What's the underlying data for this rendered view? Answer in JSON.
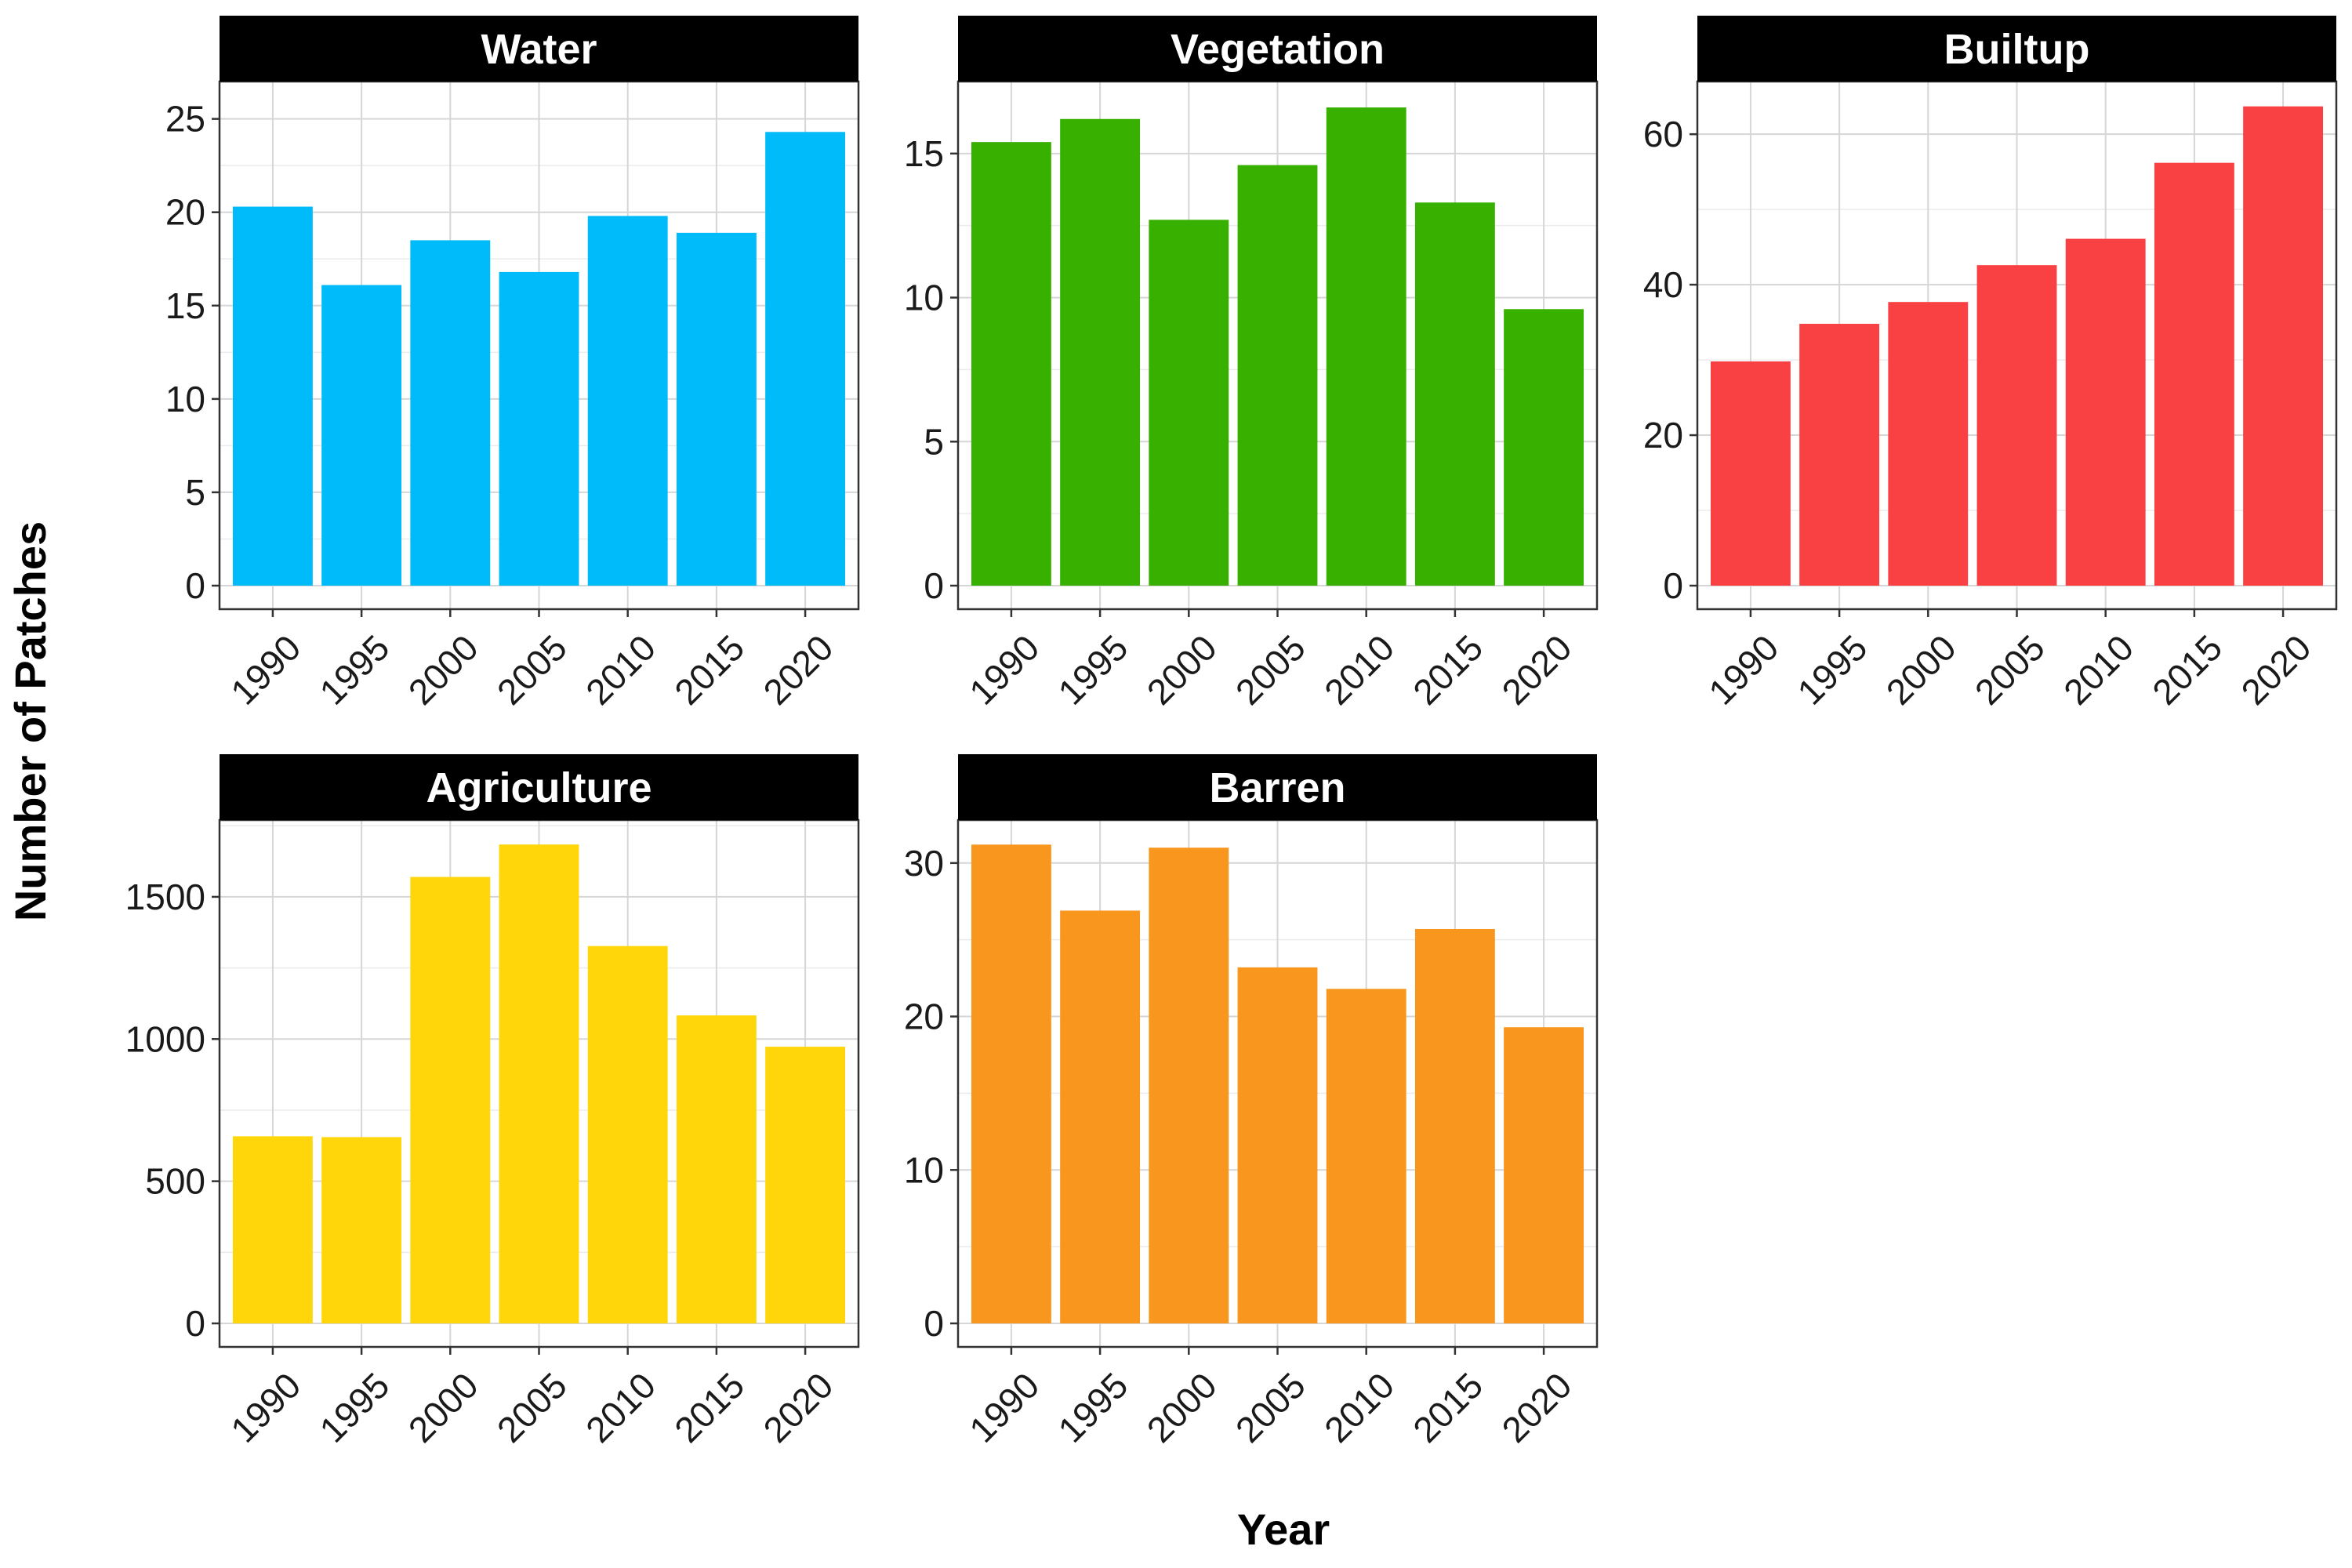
{
  "x_axis_title": "Year",
  "y_axis_title": "Number of Patches",
  "chart_data": [
    {
      "type": "bar",
      "title": "Water",
      "color": "#00BBF9",
      "categories": [
        "1990",
        "1995",
        "2000",
        "2005",
        "2010",
        "2015",
        "2020"
      ],
      "values": [
        20.3,
        16.1,
        18.5,
        16.8,
        19.8,
        18.9,
        24.3
      ],
      "ylim": [
        0,
        27
      ],
      "yticks": [
        0,
        5,
        10,
        15,
        20,
        25
      ],
      "xlabel": "Year",
      "ylabel": "Number of Patches",
      "grid": true
    },
    {
      "type": "bar",
      "title": "Vegetation",
      "color": "#38B000",
      "categories": [
        "1990",
        "1995",
        "2000",
        "2005",
        "2010",
        "2015",
        "2020"
      ],
      "values": [
        15.4,
        16.2,
        12.7,
        14.6,
        16.6,
        13.3,
        9.6
      ],
      "ylim": [
        0,
        17.5
      ],
      "yticks": [
        0,
        5,
        10,
        15
      ],
      "xlabel": "Year",
      "ylabel": "Number of Patches",
      "grid": true
    },
    {
      "type": "bar",
      "title": "Builtup",
      "color": "#F94144",
      "categories": [
        "1990",
        "1995",
        "2000",
        "2005",
        "2010",
        "2015",
        "2020"
      ],
      "values": [
        29.8,
        34.8,
        37.7,
        42.6,
        46.1,
        56.2,
        63.7
      ],
      "ylim": [
        0,
        67
      ],
      "yticks": [
        0,
        20,
        40,
        60
      ],
      "xlabel": "Year",
      "ylabel": "Number of Patches",
      "grid": true
    },
    {
      "type": "bar",
      "title": "Agriculture",
      "color": "#FFD60A",
      "categories": [
        "1990",
        "1995",
        "2000",
        "2005",
        "2010",
        "2015",
        "2020"
      ],
      "values": [
        658,
        655,
        1570,
        1684,
        1327,
        1083,
        973
      ],
      "ylim": [
        0,
        1770
      ],
      "yticks": [
        0,
        500,
        1000,
        1500
      ],
      "xlabel": "Year",
      "ylabel": "Number of Patches",
      "grid": true
    },
    {
      "type": "bar",
      "title": "Barren",
      "color": "#F8961E",
      "categories": [
        "1990",
        "1995",
        "2000",
        "2005",
        "2010",
        "2015",
        "2020"
      ],
      "values": [
        31.2,
        26.9,
        31.0,
        23.2,
        21.8,
        25.7,
        19.3
      ],
      "ylim": [
        0,
        32.8
      ],
      "yticks": [
        0,
        10,
        20,
        30
      ],
      "xlabel": "Year",
      "ylabel": "Number of Patches",
      "grid": true
    }
  ]
}
